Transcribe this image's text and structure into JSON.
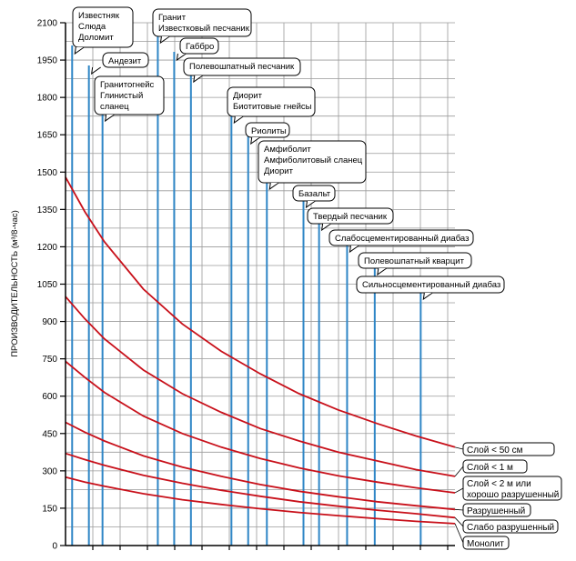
{
  "chart_data": {
    "type": "line",
    "ylabel": "ПРОИЗВОДИТЕЛЬНОСТЬ (м³/8-час)",
    "ylim": [
      0,
      2100
    ],
    "yticks": [
      0,
      150,
      300,
      450,
      600,
      750,
      900,
      1050,
      1200,
      1350,
      1500,
      1650,
      1800,
      1950,
      2100
    ],
    "grid": true,
    "series": [
      {
        "name": "Слой < 50 см",
        "color": "#c8101a",
        "points": [
          [
            0,
            1480
          ],
          [
            0.05,
            1340
          ],
          [
            0.1,
            1220
          ],
          [
            0.2,
            1030
          ],
          [
            0.3,
            890
          ],
          [
            0.4,
            780
          ],
          [
            0.5,
            690
          ],
          [
            0.6,
            610
          ],
          [
            0.7,
            545
          ],
          [
            0.8,
            490
          ],
          [
            0.9,
            440
          ],
          [
            1,
            395
          ]
        ]
      },
      {
        "name": "Слой < 1 м",
        "color": "#c8101a",
        "points": [
          [
            0,
            1000
          ],
          [
            0.05,
            910
          ],
          [
            0.1,
            830
          ],
          [
            0.2,
            705
          ],
          [
            0.3,
            610
          ],
          [
            0.4,
            535
          ],
          [
            0.5,
            470
          ],
          [
            0.6,
            420
          ],
          [
            0.7,
            375
          ],
          [
            0.8,
            340
          ],
          [
            0.9,
            305
          ],
          [
            1,
            278
          ]
        ]
      },
      {
        "name": "Слой < 2 м или хорошо разрушенный",
        "color": "#c8101a",
        "points": [
          [
            0,
            740
          ],
          [
            0.05,
            675
          ],
          [
            0.1,
            615
          ],
          [
            0.2,
            520
          ],
          [
            0.3,
            450
          ],
          [
            0.4,
            395
          ],
          [
            0.5,
            350
          ],
          [
            0.6,
            312
          ],
          [
            0.7,
            280
          ],
          [
            0.8,
            255
          ],
          [
            0.9,
            232
          ],
          [
            1,
            212
          ]
        ]
      },
      {
        "name": "Разрушенный",
        "color": "#c8101a",
        "points": [
          [
            0,
            495
          ],
          [
            0.05,
            455
          ],
          [
            0.1,
            420
          ],
          [
            0.2,
            360
          ],
          [
            0.3,
            315
          ],
          [
            0.4,
            278
          ],
          [
            0.5,
            245
          ],
          [
            0.6,
            218
          ],
          [
            0.7,
            196
          ],
          [
            0.8,
            176
          ],
          [
            0.9,
            160
          ],
          [
            1,
            145
          ]
        ]
      },
      {
        "name": "Слабо разрушенный",
        "color": "#c8101a",
        "points": [
          [
            0,
            370
          ],
          [
            0.05,
            345
          ],
          [
            0.1,
            322
          ],
          [
            0.2,
            282
          ],
          [
            0.3,
            250
          ],
          [
            0.4,
            222
          ],
          [
            0.5,
            198
          ],
          [
            0.6,
            176
          ],
          [
            0.7,
            158
          ],
          [
            0.8,
            142
          ],
          [
            0.9,
            128
          ],
          [
            1,
            112
          ]
        ]
      },
      {
        "name": "Монолит",
        "color": "#c8101a",
        "points": [
          [
            0,
            275
          ],
          [
            0.05,
            255
          ],
          [
            0.1,
            238
          ],
          [
            0.2,
            208
          ],
          [
            0.3,
            184
          ],
          [
            0.4,
            165
          ],
          [
            0.5,
            148
          ],
          [
            0.6,
            133
          ],
          [
            0.7,
            120
          ],
          [
            0.8,
            108
          ],
          [
            0.9,
            97
          ],
          [
            1,
            88
          ]
        ]
      }
    ],
    "rock_lines": [
      {
        "label": [
          "Известняк",
          "Слюда",
          "Доломит"
        ],
        "x": 0.017
      },
      {
        "label": [
          "Андезит"
        ],
        "x": 0.06
      },
      {
        "label": [
          "Гранитогнейс",
          "Глинистый",
          "сланец"
        ],
        "x": 0.095
      },
      {
        "label": [
          "Гранит",
          "Известковый песчаник"
        ],
        "x": 0.237
      },
      {
        "label": [
          "Габбро"
        ],
        "x": 0.279
      },
      {
        "label": [
          "Полевошпатный песчаник"
        ],
        "x": 0.322
      },
      {
        "label": [
          "Диорит",
          "Биотитовые гнейсы"
        ],
        "x": 0.426
      },
      {
        "label": [
          "Риолиты"
        ],
        "x": 0.469
      },
      {
        "label": [
          "Амфиболит",
          "Амфиболитовый сланец",
          "Диорит"
        ],
        "x": 0.517
      },
      {
        "label": [
          "Базальт"
        ],
        "x": 0.611
      },
      {
        "label": [
          "Твердый песчаник"
        ],
        "x": 0.651
      },
      {
        "label": [
          "Слабосцементированный диабаз"
        ],
        "x": 0.723
      },
      {
        "label": [
          "Полевошпатный кварцит"
        ],
        "x": 0.794
      },
      {
        "label": [
          "Сильносцементированный диабаз"
        ],
        "x": 0.912
      }
    ],
    "legend_placement": "right"
  },
  "colors": {
    "curve": "#c8101a",
    "rock_line": "#2f86c6",
    "grid": "#9a9a9a",
    "axis": "#000000"
  }
}
